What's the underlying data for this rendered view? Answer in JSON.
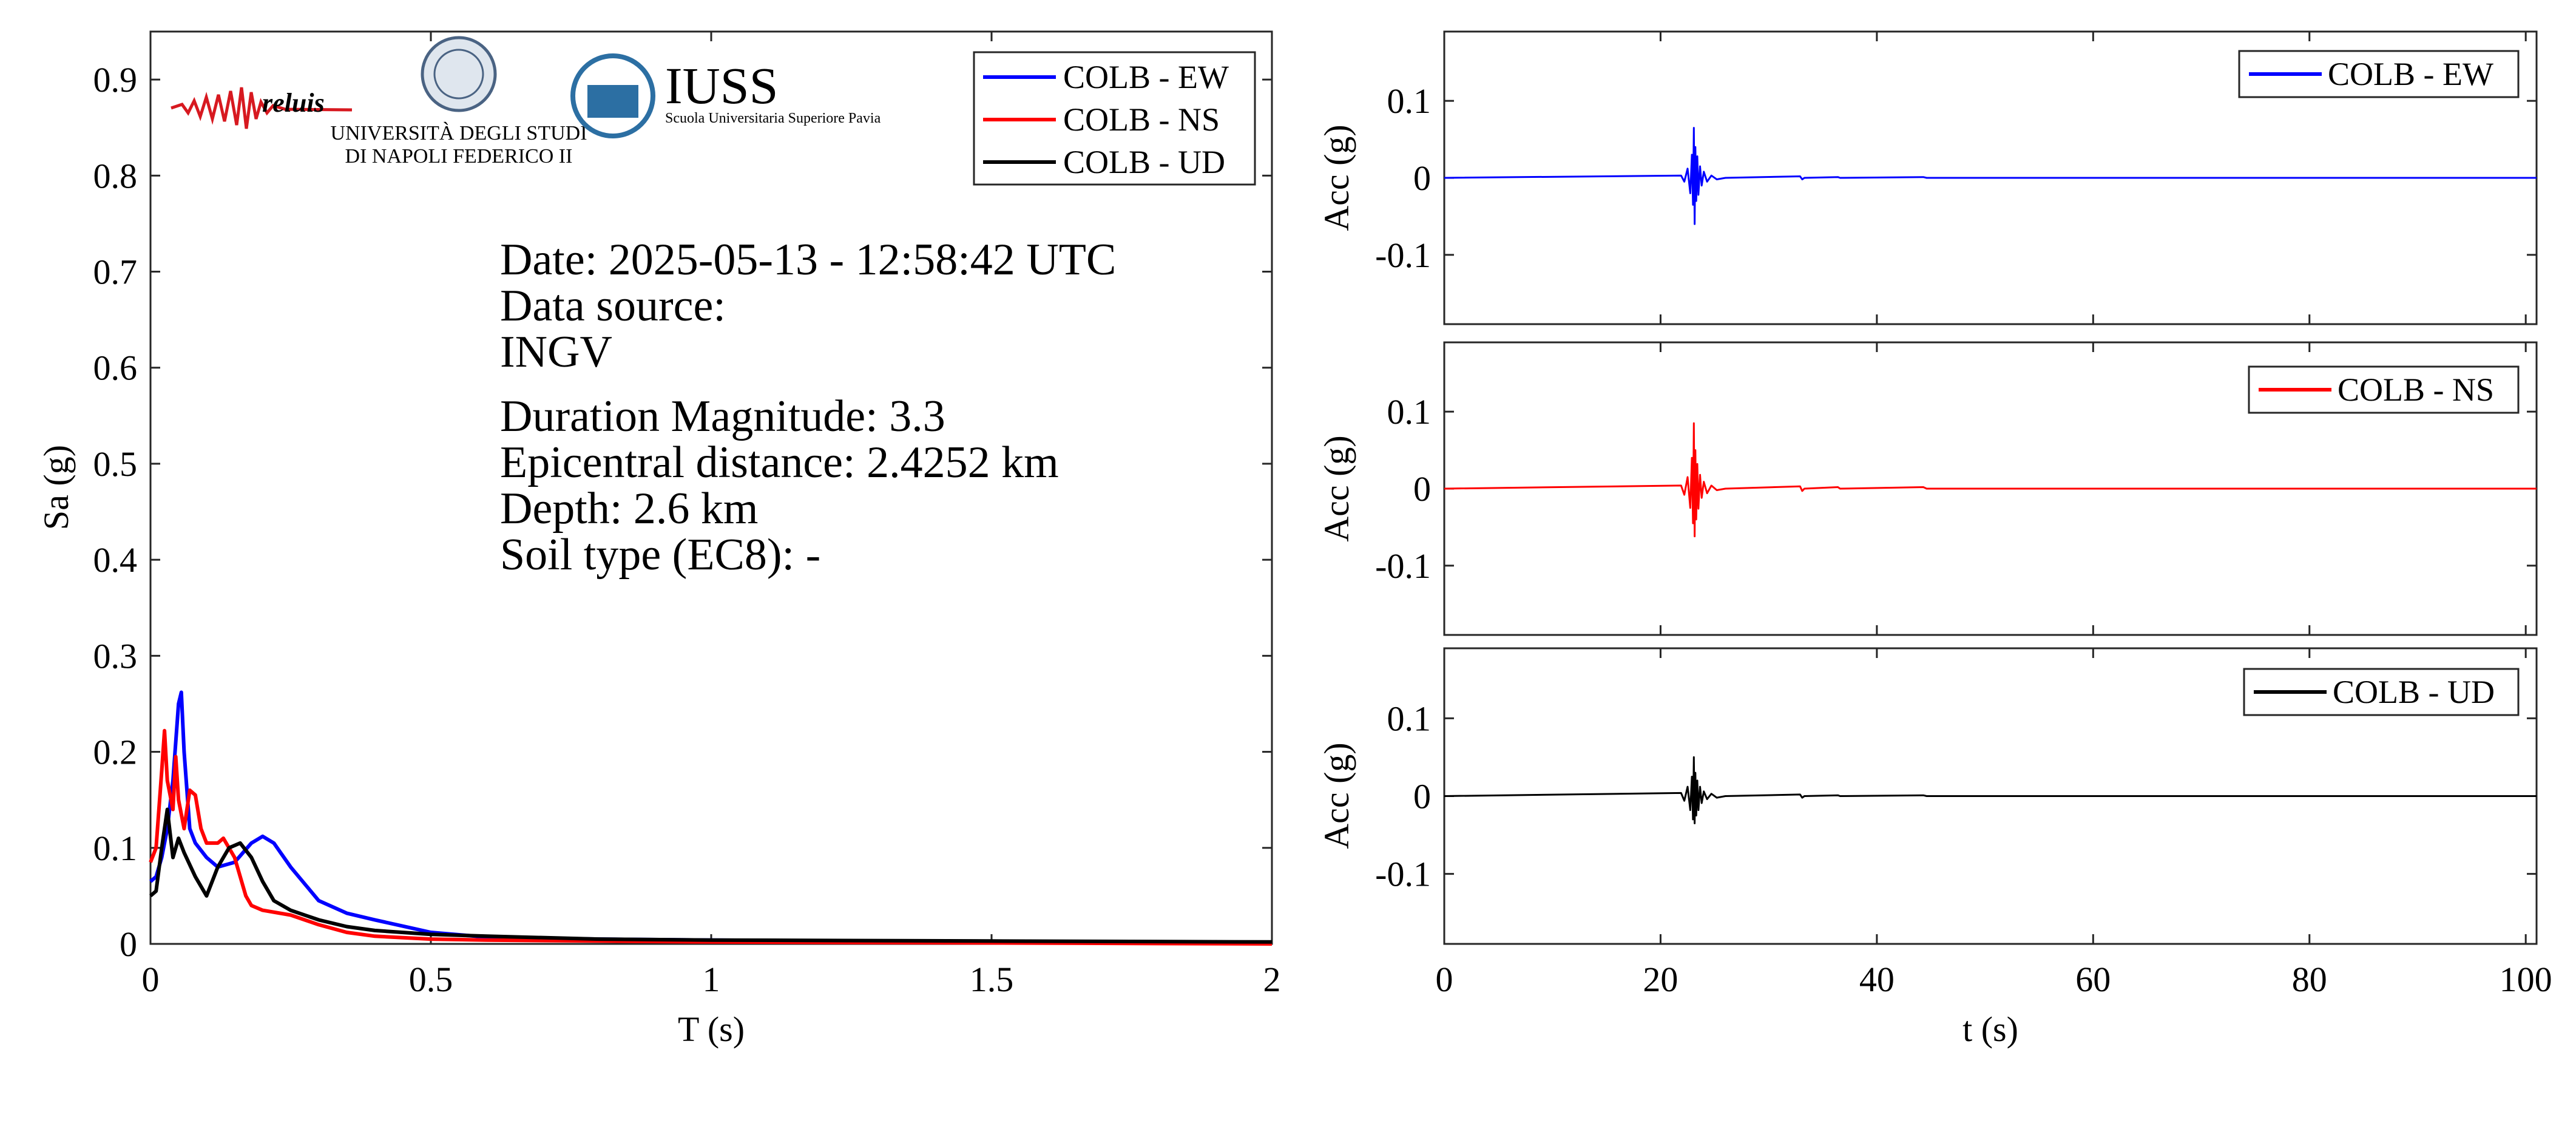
{
  "logos": {
    "reluis": "reluis",
    "unina_line1": "UNIVERSITÀ DEGLI STUDI",
    "unina_line2": "DI NAPOLI FEDERICO II",
    "iuss_title": "IUSS",
    "iuss_subtitle": "Scuola Universitaria Superiore Pavia"
  },
  "info": {
    "date": "Date: 2025-05-13 - 12:58:42 UTC",
    "source_label": "Data source:",
    "source_value": "INGV",
    "magnitude": "Duration Magnitude: 3.3",
    "distance": "Epicentral distance: 2.4252 km",
    "depth": "Depth: 2.6 km",
    "soil": "Soil type (EC8): -"
  },
  "colors": {
    "ew": "#0000ff",
    "ns": "#ff0000",
    "ud": "#000000"
  },
  "chart_data": [
    {
      "type": "line",
      "xlabel": "T (s)",
      "ylabel": "Sa (g)",
      "xlim": [
        0,
        2
      ],
      "ylim": [
        0,
        0.95
      ],
      "xticks": [
        0,
        0.5,
        1,
        1.5,
        2
      ],
      "xtick_labels": [
        "0",
        "0.5",
        "1",
        "1.5",
        "2"
      ],
      "yticks": [
        0,
        0.1,
        0.2,
        0.3,
        0.4,
        0.5,
        0.6,
        0.7,
        0.8,
        0.9
      ],
      "ytick_labels": [
        "0",
        "0.1",
        "0.2",
        "0.3",
        "0.4",
        "0.5",
        "0.6",
        "0.7",
        "0.8",
        "0.9"
      ],
      "legend": "top-right",
      "grid": false,
      "series": [
        {
          "name": "COLB - EW",
          "color": "#0000ff",
          "x": [
            0,
            0.01,
            0.02,
            0.03,
            0.04,
            0.05,
            0.055,
            0.06,
            0.07,
            0.08,
            0.1,
            0.12,
            0.15,
            0.18,
            0.2,
            0.22,
            0.25,
            0.3,
            0.35,
            0.4,
            0.5,
            0.6,
            0.8,
            1.0,
            1.5,
            2.0
          ],
          "y": [
            0.065,
            0.07,
            0.09,
            0.12,
            0.17,
            0.25,
            0.262,
            0.2,
            0.12,
            0.105,
            0.09,
            0.08,
            0.085,
            0.105,
            0.112,
            0.105,
            0.08,
            0.045,
            0.032,
            0.025,
            0.012,
            0.007,
            0.005,
            0.004,
            0.002,
            0.001
          ]
        },
        {
          "name": "COLB - NS",
          "color": "#ff0000",
          "x": [
            0,
            0.01,
            0.02,
            0.025,
            0.03,
            0.04,
            0.045,
            0.05,
            0.06,
            0.07,
            0.08,
            0.09,
            0.1,
            0.12,
            0.13,
            0.15,
            0.17,
            0.18,
            0.2,
            0.25,
            0.3,
            0.35,
            0.4,
            0.5,
            0.6,
            0.8,
            1.0,
            1.5,
            2.0
          ],
          "y": [
            0.085,
            0.1,
            0.18,
            0.222,
            0.17,
            0.14,
            0.195,
            0.15,
            0.12,
            0.16,
            0.155,
            0.12,
            0.105,
            0.105,
            0.11,
            0.09,
            0.05,
            0.04,
            0.035,
            0.03,
            0.02,
            0.012,
            0.008,
            0.005,
            0.004,
            0.003,
            0.002,
            0.001,
            0.0
          ]
        },
        {
          "name": "COLB - UD",
          "color": "#000000",
          "x": [
            0,
            0.01,
            0.02,
            0.03,
            0.04,
            0.05,
            0.06,
            0.08,
            0.1,
            0.12,
            0.14,
            0.16,
            0.18,
            0.2,
            0.22,
            0.25,
            0.3,
            0.35,
            0.4,
            0.5,
            0.6,
            0.8,
            1.0,
            1.5,
            2.0
          ],
          "y": [
            0.05,
            0.055,
            0.1,
            0.14,
            0.09,
            0.11,
            0.095,
            0.07,
            0.05,
            0.08,
            0.1,
            0.105,
            0.09,
            0.065,
            0.045,
            0.035,
            0.025,
            0.018,
            0.014,
            0.01,
            0.008,
            0.005,
            0.004,
            0.003,
            0.002
          ]
        }
      ]
    },
    {
      "type": "line",
      "xlabel": "",
      "ylabel": "Acc (g)",
      "xlim": [
        0,
        101
      ],
      "ylim": [
        -0.19,
        0.19
      ],
      "yticks": [
        -0.1,
        0,
        0.1
      ],
      "ytick_labels": [
        "-0.1",
        "0",
        "0.1"
      ],
      "legend": "top-right",
      "series": [
        {
          "name": "COLB - EW",
          "color": "#0000ff",
          "x": [
            0,
            21.9,
            22.2,
            22.5,
            22.75,
            22.9,
            23.0,
            23.08,
            23.15,
            23.22,
            23.3,
            23.4,
            23.5,
            23.65,
            23.8,
            24.0,
            24.3,
            24.7,
            25.2,
            26.0,
            32.9,
            33.1,
            33.3,
            36.4,
            36.6,
            44.3,
            44.6,
            101
          ],
          "y": [
            0,
            0.003,
            -0.005,
            0.012,
            -0.02,
            0.03,
            -0.035,
            0.065,
            -0.06,
            0.04,
            -0.03,
            0.028,
            -0.022,
            0.015,
            -0.01,
            0.008,
            -0.005,
            0.003,
            -0.002,
            0,
            0.002,
            -0.002,
            0,
            0.001,
            0,
            0.001,
            0,
            0
          ]
        }
      ]
    },
    {
      "type": "line",
      "xlabel": "",
      "ylabel": "Acc (g)",
      "xlim": [
        0,
        101
      ],
      "ylim": [
        -0.19,
        0.19
      ],
      "yticks": [
        -0.1,
        0,
        0.1
      ],
      "ytick_labels": [
        "-0.1",
        "0",
        "0.1"
      ],
      "legend": "top-right",
      "series": [
        {
          "name": "COLB - NS",
          "color": "#ff0000",
          "x": [
            0,
            21.9,
            22.2,
            22.5,
            22.75,
            22.9,
            23.0,
            23.08,
            23.15,
            23.22,
            23.3,
            23.4,
            23.5,
            23.65,
            23.8,
            24.0,
            24.3,
            24.7,
            25.2,
            26.0,
            32.9,
            33.1,
            33.3,
            36.4,
            36.6,
            44.3,
            44.6,
            101
          ],
          "y": [
            0,
            0.004,
            -0.008,
            0.015,
            -0.025,
            0.04,
            -0.045,
            0.085,
            -0.062,
            0.05,
            -0.04,
            0.032,
            -0.026,
            0.018,
            -0.012,
            0.009,
            -0.006,
            0.004,
            -0.002,
            0,
            0.003,
            -0.003,
            0,
            0.002,
            0,
            0.002,
            0,
            0
          ]
        }
      ]
    },
    {
      "type": "line",
      "xlabel": "t (s)",
      "ylabel": "Acc (g)",
      "xlim": [
        0,
        101
      ],
      "ylim": [
        -0.19,
        0.19
      ],
      "xticks": [
        0,
        20,
        40,
        60,
        80,
        100
      ],
      "xtick_labels": [
        "0",
        "20",
        "40",
        "60",
        "80",
        "100"
      ],
      "yticks": [
        -0.1,
        0,
        0.1
      ],
      "ytick_labels": [
        "-0.1",
        "0",
        "0.1"
      ],
      "legend": "top-right",
      "series": [
        {
          "name": "COLB - UD",
          "color": "#000000",
          "x": [
            0,
            21.9,
            22.2,
            22.5,
            22.75,
            22.9,
            23.0,
            23.08,
            23.15,
            23.22,
            23.3,
            23.4,
            23.5,
            23.65,
            23.8,
            24.0,
            24.3,
            24.7,
            25.2,
            26.0,
            32.9,
            33.1,
            33.3,
            36.4,
            36.6,
            44.3,
            44.6,
            101
          ],
          "y": [
            0,
            0.004,
            -0.006,
            0.012,
            -0.018,
            0.025,
            -0.03,
            0.05,
            -0.035,
            0.03,
            -0.025,
            0.02,
            -0.018,
            0.012,
            -0.009,
            0.006,
            -0.004,
            0.003,
            -0.002,
            0,
            0.002,
            -0.002,
            0,
            0.001,
            0,
            0.001,
            0,
            0
          ]
        }
      ]
    }
  ]
}
